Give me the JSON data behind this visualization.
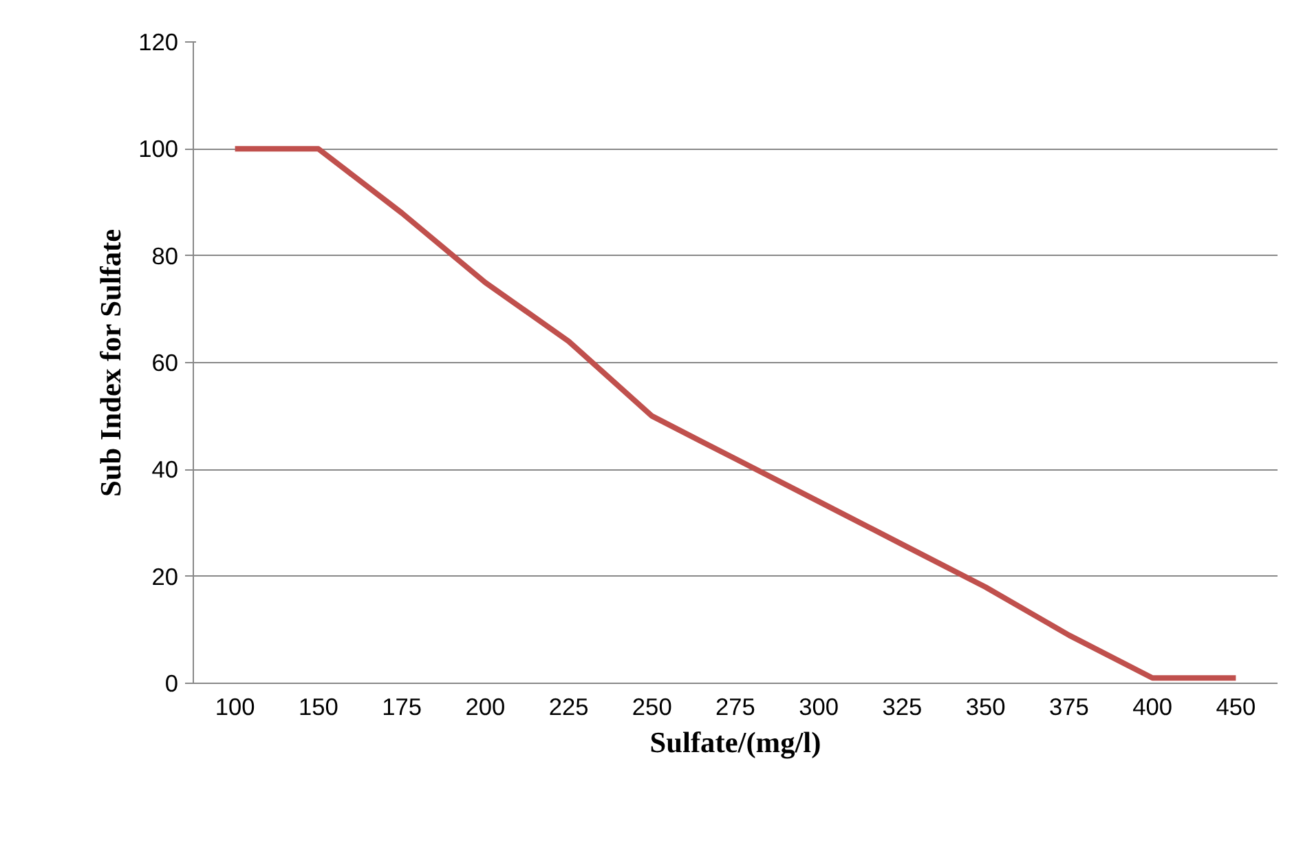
{
  "chart_data": {
    "type": "line",
    "xlabel": "Sulfate/(mg/l)",
    "ylabel": "Sub Index for Sulfate",
    "categories": [
      "100",
      "150",
      "175",
      "200",
      "225",
      "250",
      "275",
      "300",
      "325",
      "350",
      "375",
      "400",
      "450"
    ],
    "series": [
      {
        "color": "#c0504d",
        "values": [
          100,
          100,
          88,
          75,
          64,
          50,
          42,
          34,
          26,
          18,
          9,
          1,
          1
        ]
      }
    ],
    "ylim": [
      0,
      120
    ],
    "yticks": [
      0,
      20,
      40,
      60,
      80,
      100,
      120
    ],
    "grid": "y",
    "marker": "none",
    "line_style": "solid"
  }
}
